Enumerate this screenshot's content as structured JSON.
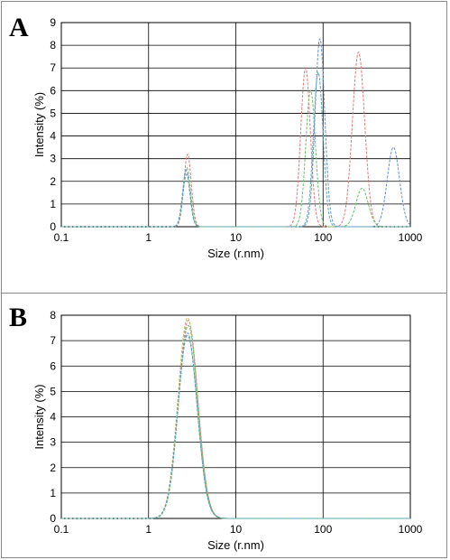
{
  "chart_data": [
    {
      "panel": "A",
      "type": "line",
      "xlabel": "Size (r.nm)",
      "ylabel": "Intensity (%)",
      "x_scale": "log",
      "xlim": [
        0.1,
        1000
      ],
      "ylim": [
        0,
        9
      ],
      "x_ticks": [
        "0.1",
        "1",
        "10",
        "100",
        "1000"
      ],
      "y_ticks": [
        "0",
        "1",
        "2",
        "3",
        "4",
        "5",
        "6",
        "7",
        "8",
        "9"
      ],
      "grid": true,
      "series": [
        {
          "color": "#e07b7b",
          "peaks": [
            {
              "center": 2.8,
              "height": 3.2,
              "width": 0.042
            },
            {
              "center": 63,
              "height": 7.0,
              "width": 0.055
            },
            {
              "center": 255,
              "height": 7.7,
              "width": 0.07
            }
          ]
        },
        {
          "color": "#6fbf6f",
          "peaks": [
            {
              "center": 2.75,
              "height": 2.6,
              "width": 0.042
            },
            {
              "center": 72,
              "height": 6.0,
              "width": 0.055
            },
            {
              "center": 280,
              "height": 1.7,
              "width": 0.07
            }
          ]
        },
        {
          "color": "#6a8fd6",
          "peaks": [
            {
              "center": 2.7,
              "height": 2.5,
              "width": 0.042
            },
            {
              "center": 92,
              "height": 8.3,
              "width": 0.055
            },
            {
              "center": 640,
              "height": 3.5,
              "width": 0.07
            }
          ]
        },
        {
          "color": "#5aa8a8",
          "peaks": [
            {
              "center": 2.72,
              "height": 2.3,
              "width": 0.042
            },
            {
              "center": 88,
              "height": 6.8,
              "width": 0.055
            }
          ]
        }
      ]
    },
    {
      "panel": "B",
      "type": "line",
      "xlabel": "Size (r.nm)",
      "ylabel": "Intensity (%)",
      "x_scale": "log",
      "xlim": [
        0.1,
        1000
      ],
      "ylim": [
        0,
        8
      ],
      "x_ticks": [
        "0.1",
        "1",
        "10",
        "100",
        "1000"
      ],
      "y_ticks": [
        "0",
        "1",
        "2",
        "3",
        "4",
        "5",
        "6",
        "7",
        "8"
      ],
      "grid": true,
      "series": [
        {
          "color": "#e07b7b",
          "peaks": [
            {
              "center": 2.85,
              "height": 7.8,
              "width": 0.11
            }
          ]
        },
        {
          "color": "#c8b86a",
          "peaks": [
            {
              "center": 2.8,
              "height": 7.9,
              "width": 0.11
            }
          ]
        },
        {
          "color": "#6fbf6f",
          "peaks": [
            {
              "center": 2.85,
              "height": 7.6,
              "width": 0.11
            }
          ]
        },
        {
          "color": "#6a8fd6",
          "peaks": [
            {
              "center": 2.8,
              "height": 7.3,
              "width": 0.11
            }
          ]
        },
        {
          "color": "#5aa8a8",
          "peaks": [
            {
              "center": 2.8,
              "height": 7.2,
              "width": 0.11
            }
          ]
        }
      ]
    }
  ]
}
